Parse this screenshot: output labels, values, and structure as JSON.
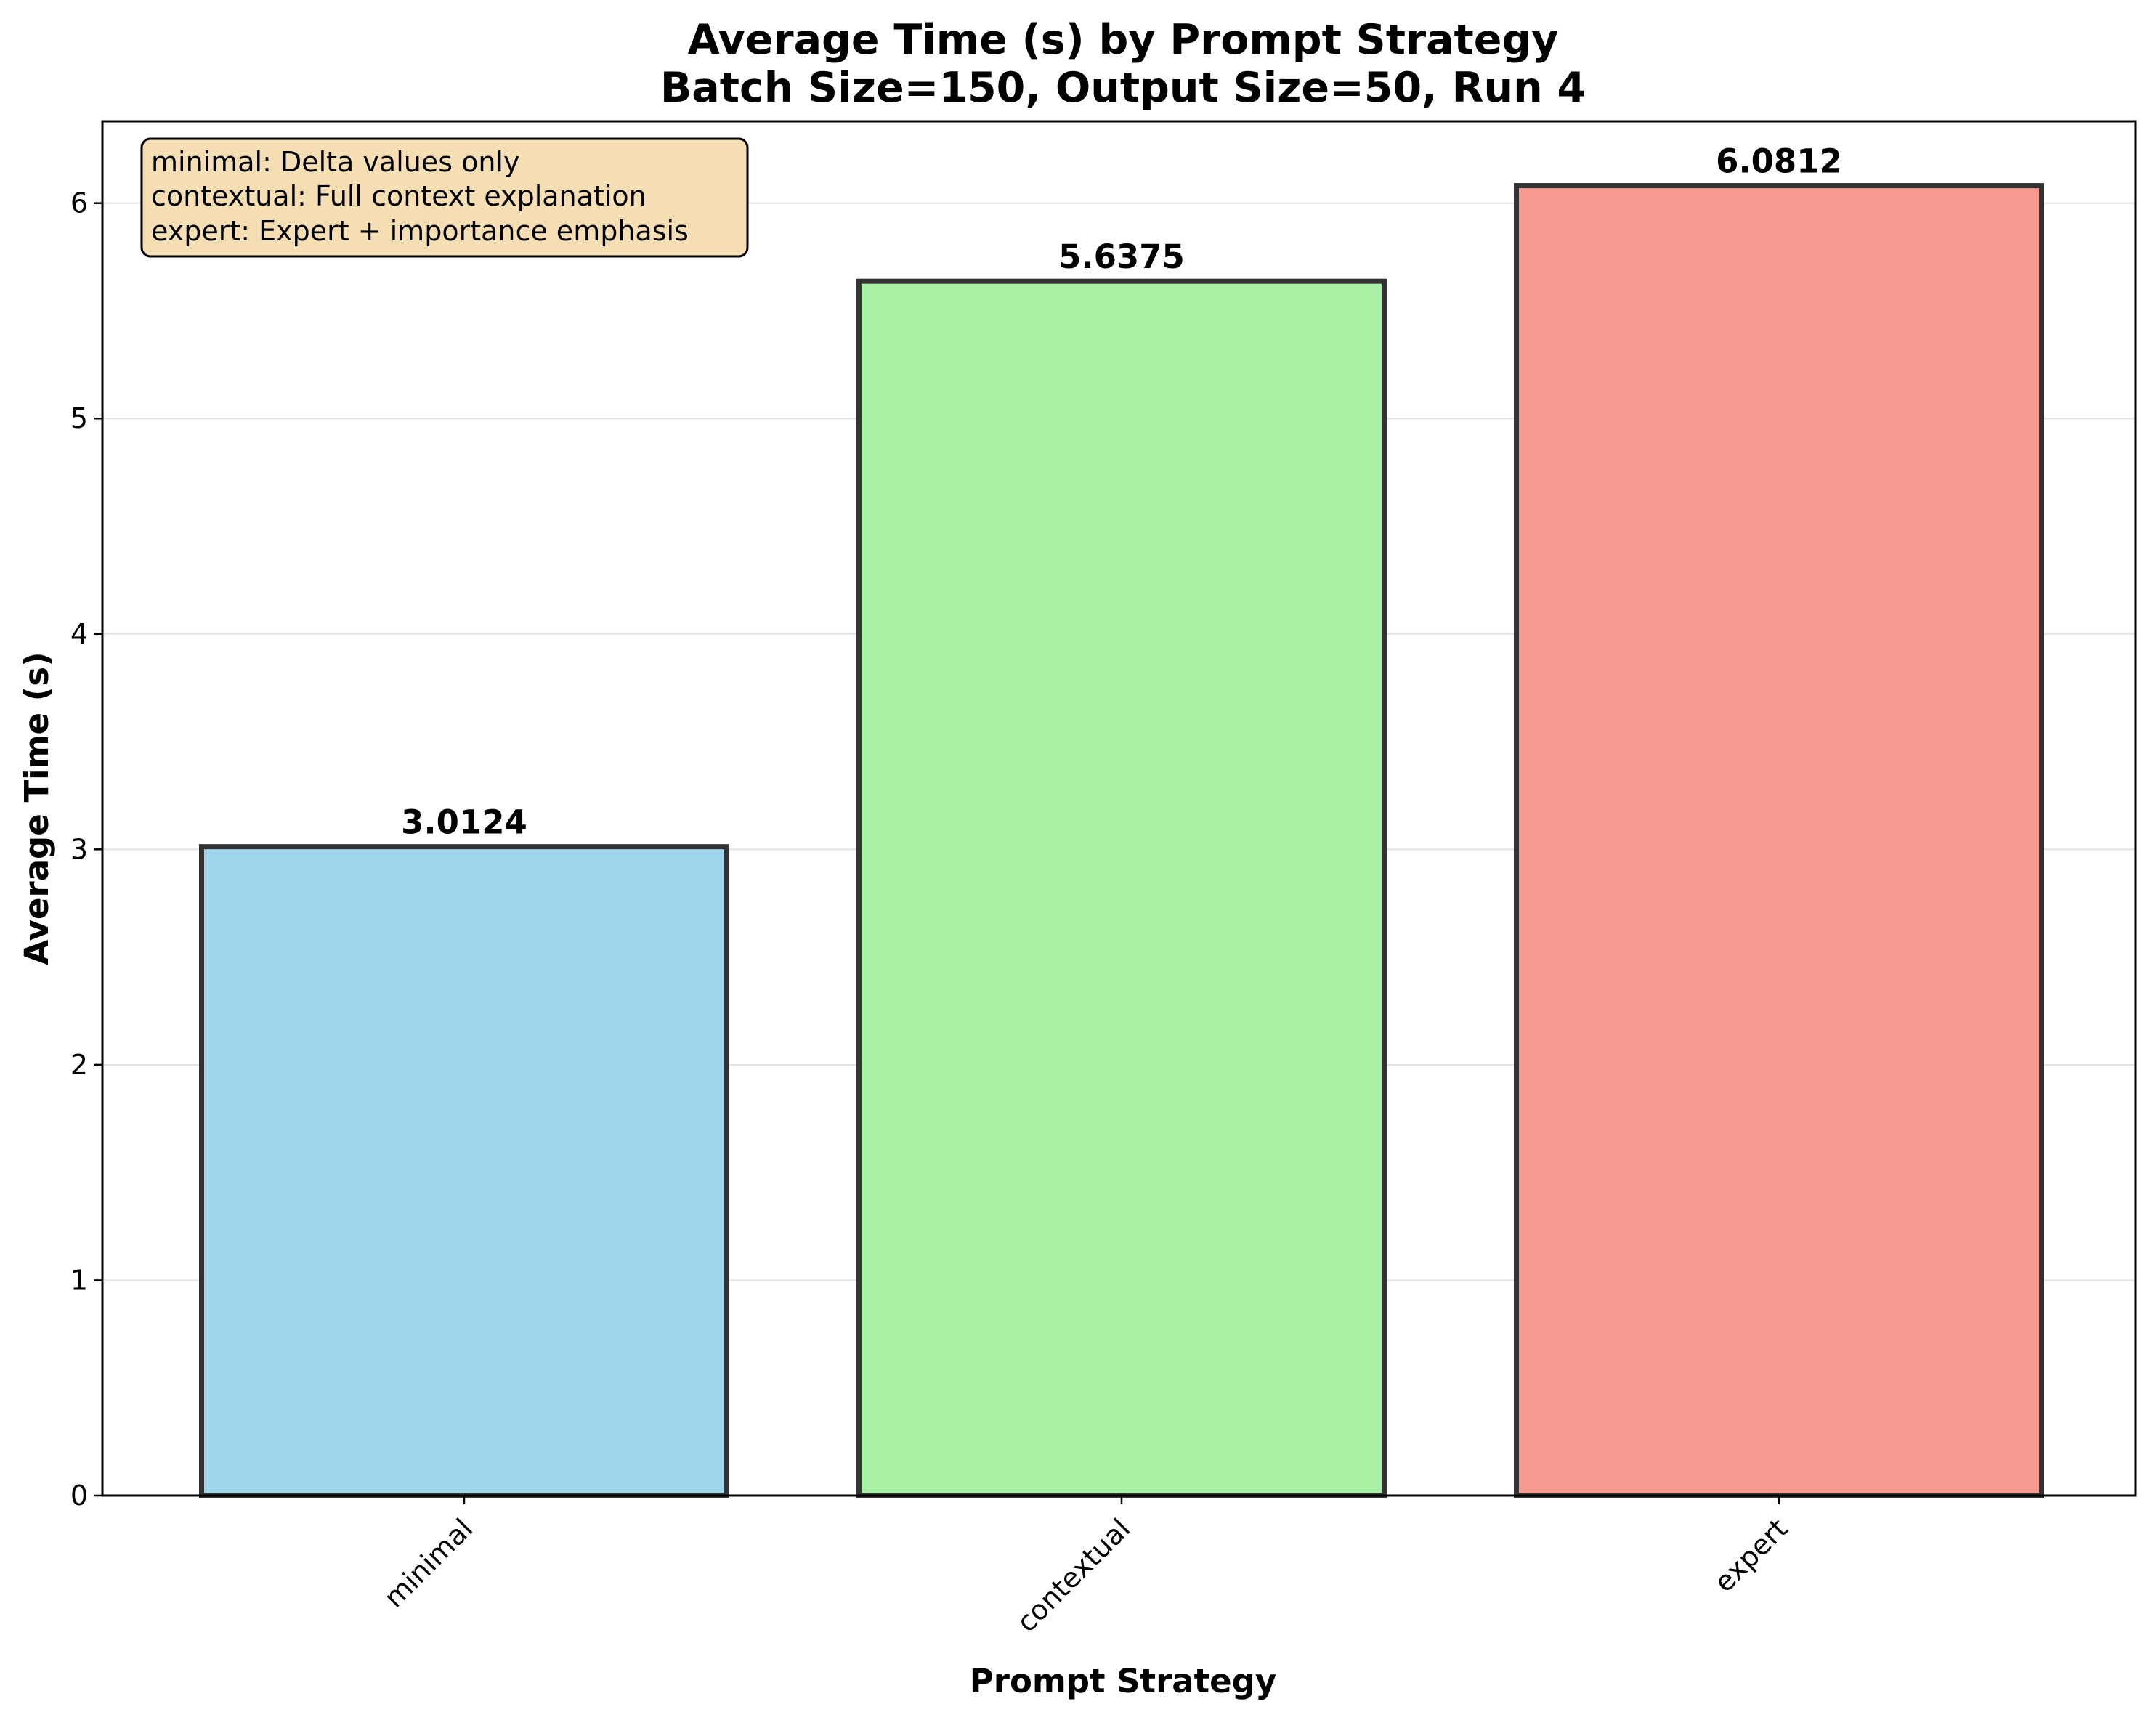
{
  "chart_data": {
    "type": "bar",
    "title": [
      "Average Time (s) by Prompt Strategy",
      "Batch Size=150, Output Size=50, Run 4"
    ],
    "xlabel": "Prompt Strategy",
    "ylabel": "Average Time (s)",
    "categories": [
      "minimal",
      "contextual",
      "expert"
    ],
    "values": [
      3.0124,
      5.6375,
      6.0812
    ],
    "value_labels": [
      "3.0124",
      "5.6375",
      "6.0812"
    ],
    "colors": [
      "#9fd6ec",
      "#a8f0a3",
      "#f99a90"
    ],
    "edge_color": "#333333",
    "ylim": [
      0,
      6.38
    ],
    "yticks": [
      0,
      1,
      2,
      3,
      4,
      5,
      6
    ],
    "grid": "horizontal",
    "annotation": [
      "minimal: Delta values only",
      "contextual: Full context explanation",
      "expert: Expert + importance emphasis"
    ],
    "annotation_position": "top-left",
    "annotation_bg": "#f5deb3"
  }
}
